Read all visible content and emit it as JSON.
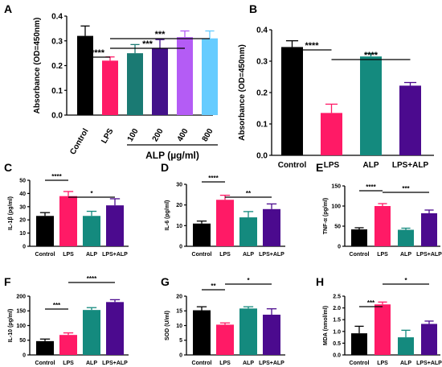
{
  "colors": {
    "Control": "#000000",
    "LPS": "#ff1a66",
    "ALP": "#148a7e",
    "LPS+ALP": "#4b0a8e",
    "ALP400": "#b45cf5",
    "ALP800": "#66ccff",
    "ALP100": "#1a7a73",
    "ALP200": "#43128a"
  },
  "chart_data": [
    {
      "panel": "A",
      "type": "bar",
      "ylabel": "Absorbance (OD=450nm)",
      "ylim": [
        0,
        0.4
      ],
      "yticks": [
        0.0,
        0.1,
        0.2,
        0.3,
        0.4
      ],
      "categories": [
        "Control",
        "LPS",
        "100",
        "200",
        "400",
        "800"
      ],
      "values": [
        0.32,
        0.22,
        0.25,
        0.27,
        0.315,
        0.31
      ],
      "errors": [
        0.04,
        0.015,
        0.035,
        0.035,
        0.025,
        0.03
      ],
      "color_keys": [
        "Control",
        "LPS",
        "ALP100",
        "ALP200",
        "ALP400",
        "ALP800"
      ],
      "group_label": "ALP (µg/ml)",
      "significance": [
        {
          "from": 0,
          "to": 1,
          "label": "****"
        },
        {
          "from": 1,
          "to": 5,
          "label": "***"
        },
        {
          "from": 1,
          "to": 4,
          "label": "***"
        }
      ]
    },
    {
      "panel": "B",
      "type": "bar",
      "ylabel": "Absorbance (OD=450nm)",
      "ylim": [
        0,
        0.4
      ],
      "yticks": [
        0.0,
        0.1,
        0.2,
        0.3,
        0.4
      ],
      "categories": [
        "Control",
        "LPS",
        "ALP",
        "LPS+ALP"
      ],
      "values": [
        0.345,
        0.135,
        0.315,
        0.222
      ],
      "errors": [
        0.02,
        0.028,
        0.01,
        0.01
      ],
      "color_keys": [
        "Control",
        "LPS",
        "ALP",
        "LPS+ALP"
      ],
      "significance": [
        {
          "from": 0,
          "to": 1,
          "label": "****"
        },
        {
          "from": 1,
          "to": 3,
          "label": "****"
        }
      ]
    },
    {
      "panel": "C",
      "type": "bar",
      "ylabel": "IL-1β (pg/ml)",
      "ylim": [
        0,
        50
      ],
      "yticks": [
        0,
        10,
        20,
        30,
        40,
        50
      ],
      "categories": [
        "Control",
        "LPS",
        "ALP",
        "LPS+ALP"
      ],
      "values": [
        23,
        38,
        23,
        31
      ],
      "errors": [
        2.5,
        3.5,
        3.5,
        5
      ],
      "color_keys": [
        "Control",
        "LPS",
        "ALP",
        "LPS+ALP"
      ],
      "significance": [
        {
          "from": 0,
          "to": 1,
          "label": "****"
        },
        {
          "from": 1,
          "to": 3,
          "label": "*"
        }
      ]
    },
    {
      "panel": "D",
      "type": "bar",
      "ylabel": "IL-6 (pg/ml)",
      "ylim": [
        0,
        30
      ],
      "yticks": [
        0,
        10,
        20,
        30
      ],
      "categories": [
        "Control",
        "LPS",
        "ALP",
        "LPS+ALP"
      ],
      "values": [
        11,
        22.5,
        14,
        18
      ],
      "errors": [
        1.2,
        2.2,
        2.8,
        2.5
      ],
      "color_keys": [
        "Control",
        "LPS",
        "ALP",
        "LPS+ALP"
      ],
      "significance": [
        {
          "from": 0,
          "to": 1,
          "label": "****"
        },
        {
          "from": 1,
          "to": 3,
          "label": "**"
        }
      ]
    },
    {
      "panel": "E",
      "type": "bar",
      "ylabel": "TNF-α (pg/ml)",
      "ylim": [
        0,
        150
      ],
      "yticks": [
        0,
        50,
        100,
        150
      ],
      "categories": [
        "Control",
        "LPS",
        "ALP",
        "LPS+ALP"
      ],
      "values": [
        42,
        100,
        41,
        82
      ],
      "errors": [
        4,
        6,
        4,
        8
      ],
      "color_keys": [
        "Control",
        "LPS",
        "ALP",
        "LPS+ALP"
      ],
      "significance": [
        {
          "from": 0,
          "to": 1,
          "label": "****"
        },
        {
          "from": 1,
          "to": 3,
          "label": "***"
        }
      ]
    },
    {
      "panel": "F",
      "type": "bar",
      "ylabel": "IL-10 (pg/ml)",
      "ylim": [
        0,
        200
      ],
      "yticks": [
        0,
        50,
        100,
        150,
        200
      ],
      "categories": [
        "Control",
        "LPS",
        "ALP",
        "LPS+ALP"
      ],
      "values": [
        47,
        68,
        153,
        180
      ],
      "errors": [
        7,
        7,
        8,
        8
      ],
      "color_keys": [
        "Control",
        "LPS",
        "ALP",
        "LPS+ALP"
      ],
      "significance": [
        {
          "from": 0,
          "to": 1,
          "label": "***"
        },
        {
          "from": 1,
          "to": 3,
          "label": "****"
        }
      ]
    },
    {
      "panel": "G",
      "type": "bar",
      "ylabel": "SOD (U/ml)",
      "ylim": [
        0,
        20
      ],
      "yticks": [
        0,
        5,
        10,
        15,
        20
      ],
      "categories": [
        "Control",
        "LPS",
        "ALP",
        "LPS+ALP"
      ],
      "values": [
        15.2,
        10.3,
        15.8,
        13.7
      ],
      "errors": [
        1.2,
        0.6,
        0.6,
        2
      ],
      "color_keys": [
        "Control",
        "LPS",
        "ALP",
        "LPS+ALP"
      ],
      "significance": [
        {
          "from": 0,
          "to": 1,
          "label": "**"
        },
        {
          "from": 1,
          "to": 3,
          "label": "*"
        }
      ]
    },
    {
      "panel": "H",
      "type": "bar",
      "ylabel": "MDA (nmol/ml)",
      "ylim": [
        0,
        2.5
      ],
      "yticks": [
        0.0,
        0.5,
        1.0,
        1.5,
        2.0,
        2.5
      ],
      "categories": [
        "Control",
        "LPS",
        "ALP",
        "LPS+ALP"
      ],
      "values": [
        0.92,
        2.15,
        0.75,
        1.32
      ],
      "errors": [
        0.3,
        0.1,
        0.3,
        0.12
      ],
      "color_keys": [
        "Control",
        "LPS",
        "ALP",
        "LPS+ALP"
      ],
      "significance": [
        {
          "from": 0,
          "to": 1,
          "label": "***"
        },
        {
          "from": 1,
          "to": 3,
          "label": "*"
        }
      ]
    }
  ]
}
